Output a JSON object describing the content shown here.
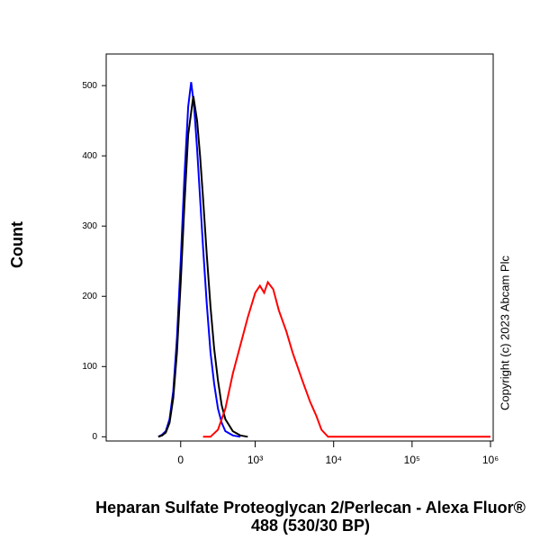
{
  "chart_data": {
    "type": "line",
    "xlabel": "Heparan Sulfate Proteoglycan 2/Perlecan - Alexa Fluor® 488 (530/30 BP)",
    "ylabel": "Count",
    "annotation": "Copyright (c) 2023 Abcam Plc",
    "xscale": "biexponential",
    "xlim": [
      -1000,
      1000000
    ],
    "xticks": [
      0,
      {
        "value": 1000,
        "label": "10³"
      },
      {
        "value": 10000,
        "label": "10⁴"
      },
      {
        "value": 100000,
        "label": "10⁵"
      },
      {
        "value": 1000000,
        "label": "10⁶"
      }
    ],
    "ylim": [
      -6,
      545
    ],
    "yticks": [
      0,
      100,
      200,
      300,
      400,
      500
    ],
    "series": [
      {
        "color": "#0000ff",
        "x": [
          -300,
          -250,
          -200,
          -150,
          -100,
          -50,
          0,
          50,
          100,
          140,
          180,
          220,
          260,
          300,
          350,
          400,
          450,
          500,
          550,
          600,
          700,
          800
        ],
        "values": [
          0,
          3,
          8,
          25,
          65,
          140,
          250,
          370,
          470,
          505,
          470,
          410,
          340,
          270,
          190,
          120,
          75,
          40,
          20,
          8,
          2,
          0
        ]
      },
      {
        "color": "#000000",
        "x": [
          -300,
          -250,
          -200,
          -150,
          -100,
          -50,
          0,
          50,
          100,
          170,
          220,
          260,
          300,
          350,
          400,
          450,
          500,
          550,
          600,
          700,
          800,
          900
        ],
        "values": [
          0,
          2,
          6,
          20,
          55,
          120,
          220,
          330,
          430,
          485,
          450,
          400,
          340,
          260,
          185,
          125,
          80,
          45,
          25,
          8,
          2,
          0
        ]
      },
      {
        "color": "#ff0000",
        "x": [
          300,
          400,
          500,
          600,
          700,
          800,
          900,
          1000,
          1150,
          1300,
          1450,
          1700,
          2000,
          2500,
          3000,
          4000,
          5000,
          6000,
          7000,
          8500,
          12000,
          100000,
          1000000
        ],
        "values": [
          0,
          0,
          10,
          40,
          90,
          130,
          170,
          205,
          215,
          205,
          220,
          210,
          180,
          150,
          120,
          80,
          50,
          30,
          10,
          0,
          0,
          0,
          0
        ]
      }
    ]
  }
}
